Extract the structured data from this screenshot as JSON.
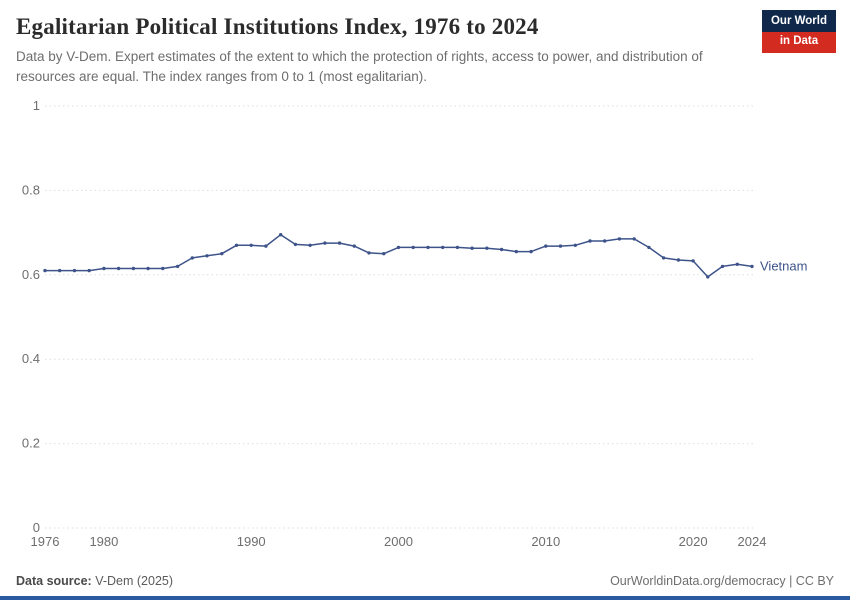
{
  "header": {
    "title": "Egalitarian Political Institutions Index, 1976 to 2024",
    "subtitle": "Data by V-Dem. Expert estimates of the extent to which the protection of rights, access to power, and distribution of resources are equal. The index ranges from 0 to 1 (most egalitarian).",
    "logo": {
      "line1": "Our World",
      "line2": "in Data"
    }
  },
  "footer": {
    "source_label": "Data source:",
    "source_value": "V-Dem (2025)",
    "right_text": "OurWorldinData.org/democracy | CC BY"
  },
  "colors": {
    "line": "#3d5389",
    "grid": "#dddddd",
    "tick_text": "#6e6e6e",
    "logo_navy": "#10294b",
    "logo_red": "#d42b21",
    "bottom_bar": "#2c5aa0"
  },
  "chart_data": {
    "type": "line",
    "title": "Egalitarian Political Institutions Index, 1976 to 2024",
    "xlabel": "",
    "ylabel": "",
    "xlim": [
      1976,
      2024
    ],
    "ylim": [
      0,
      1
    ],
    "x_ticks": [
      1976,
      1980,
      1990,
      2000,
      2010,
      2020,
      2024
    ],
    "y_ticks": [
      0,
      0.2,
      0.4,
      0.6,
      0.8,
      1
    ],
    "grid": "dashed-horizontal",
    "legend_position": "end-of-line-label",
    "series": [
      {
        "name": "Vietnam",
        "color": "#3d5389",
        "x": [
          1976,
          1977,
          1978,
          1979,
          1980,
          1981,
          1982,
          1983,
          1984,
          1985,
          1986,
          1987,
          1988,
          1989,
          1990,
          1991,
          1992,
          1993,
          1994,
          1995,
          1996,
          1997,
          1998,
          1999,
          2000,
          2001,
          2002,
          2003,
          2004,
          2005,
          2006,
          2007,
          2008,
          2009,
          2010,
          2011,
          2012,
          2013,
          2014,
          2015,
          2016,
          2017,
          2018,
          2019,
          2020,
          2021,
          2022,
          2023,
          2024
        ],
        "values": [
          0.61,
          0.61,
          0.61,
          0.61,
          0.615,
          0.615,
          0.615,
          0.615,
          0.615,
          0.62,
          0.64,
          0.645,
          0.65,
          0.67,
          0.67,
          0.668,
          0.695,
          0.672,
          0.67,
          0.675,
          0.675,
          0.668,
          0.652,
          0.65,
          0.665,
          0.665,
          0.665,
          0.665,
          0.665,
          0.663,
          0.663,
          0.66,
          0.655,
          0.655,
          0.668,
          0.668,
          0.67,
          0.68,
          0.68,
          0.685,
          0.685,
          0.665,
          0.64,
          0.635,
          0.633,
          0.595,
          0.62,
          0.625,
          0.62
        ]
      }
    ]
  }
}
